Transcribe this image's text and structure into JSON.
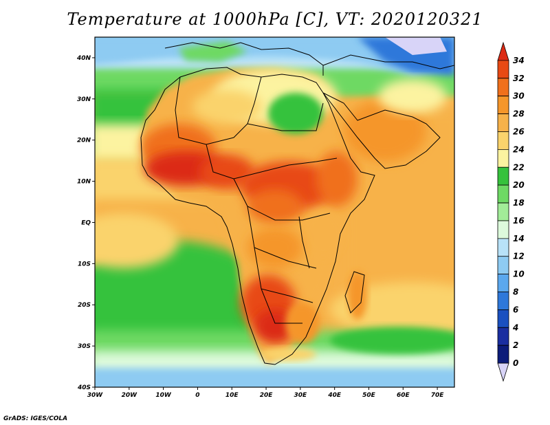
{
  "title": "Temperature at 1000hPa [C], VT: 2020120321",
  "footer": "GrADS: IGES/COLA",
  "map": {
    "lon_range": [
      -30,
      75
    ],
    "lat_range": [
      -40,
      45
    ],
    "lon_ticks": [
      {
        "lon": -30,
        "label": "30W"
      },
      {
        "lon": -20,
        "label": "20W"
      },
      {
        "lon": -10,
        "label": "10W"
      },
      {
        "lon": 0,
        "label": "0"
      },
      {
        "lon": 10,
        "label": "10E"
      },
      {
        "lon": 20,
        "label": "20E"
      },
      {
        "lon": 30,
        "label": "30E"
      },
      {
        "lon": 40,
        "label": "40E"
      },
      {
        "lon": 50,
        "label": "50E"
      },
      {
        "lon": 60,
        "label": "60E"
      },
      {
        "lon": 70,
        "label": "70E"
      }
    ],
    "lat_ticks": [
      {
        "lat": 40,
        "label": "40N"
      },
      {
        "lat": 30,
        "label": "30N"
      },
      {
        "lat": 20,
        "label": "20N"
      },
      {
        "lat": 10,
        "label": "10N"
      },
      {
        "lat": 0,
        "label": "EQ"
      },
      {
        "lat": -10,
        "label": "10S"
      },
      {
        "lat": -20,
        "label": "20S"
      },
      {
        "lat": -30,
        "label": "30S"
      },
      {
        "lat": -40,
        "label": "40S"
      }
    ]
  },
  "colorbar": {
    "levels": [
      "34",
      "32",
      "30",
      "28",
      "26",
      "24",
      "22",
      "20",
      "18",
      "16",
      "14",
      "12",
      "10",
      "8",
      "6",
      "4",
      "2",
      "0"
    ],
    "colors_top_to_bottom": [
      "#dc2a14",
      "#e84a14",
      "#f0701c",
      "#f5962a",
      "#f7b24a",
      "#fad36c",
      "#fcf3a0",
      "#36c23c",
      "#6ed964",
      "#a2ec98",
      "#ddfadc",
      "#b8e2f8",
      "#8ecbf2",
      "#5ba8ee",
      "#2e78da",
      "#1a50c0",
      "#1a2ea0",
      "#0c1c7a",
      "#d8d4f8"
    ]
  }
}
